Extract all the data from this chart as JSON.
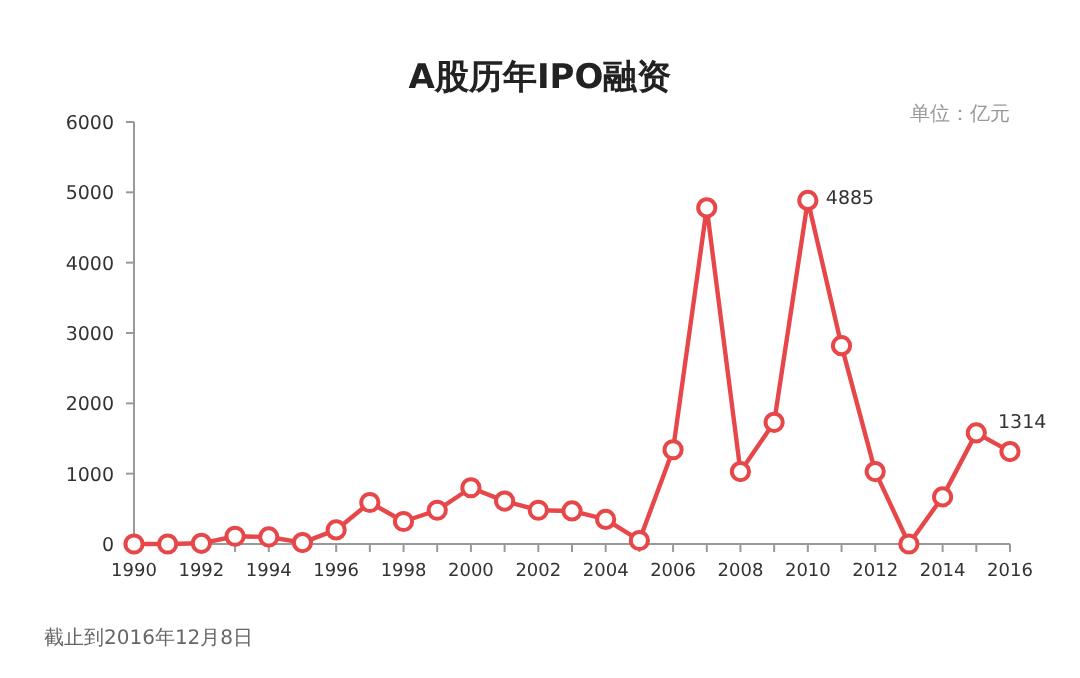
{
  "chart_data": {
    "type": "line",
    "title": "A股历年IPO融资",
    "x": [
      1990,
      1991,
      1992,
      1993,
      1994,
      1995,
      1996,
      1997,
      1998,
      1999,
      2000,
      2001,
      2002,
      2003,
      2004,
      2005,
      2006,
      2007,
      2008,
      2009,
      2010,
      2011,
      2012,
      2013,
      2014,
      2015,
      2016
    ],
    "series": [
      {
        "color": "#e8474a",
        "values": [
          0,
          0,
          10,
          110,
          100,
          20,
          200,
          590,
          320,
          480,
          800,
          610,
          480,
          470,
          350,
          50,
          1340,
          4780,
          1030,
          1730,
          4885,
          2820,
          1030,
          0,
          670,
          1580,
          1314
        ],
        "value_labels": [
          null,
          null,
          null,
          null,
          null,
          null,
          null,
          null,
          null,
          null,
          null,
          null,
          null,
          null,
          null,
          null,
          null,
          null,
          null,
          null,
          "4885",
          null,
          null,
          null,
          null,
          null,
          "1314"
        ]
      }
    ],
    "xlim": [
      1990,
      2016
    ],
    "xticks": [
      1990,
      1992,
      1994,
      1996,
      1998,
      2000,
      2002,
      2004,
      2006,
      2008,
      2010,
      2012,
      2014,
      2016
    ],
    "ylim": [
      0,
      6000
    ],
    "yticks": [
      0,
      1000,
      2000,
      3000,
      4000,
      5000,
      6000
    ],
    "marker": "circle",
    "annotations": [
      "单位：亿元",
      "截止到2016年12月8日"
    ]
  }
}
